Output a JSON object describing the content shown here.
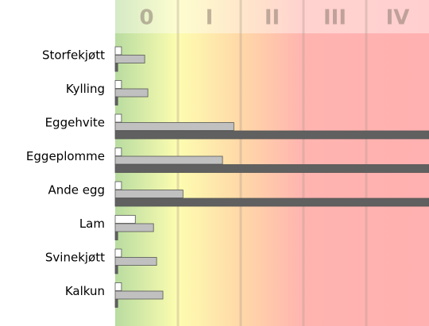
{
  "chart_data": {
    "type": "hbar",
    "categories": [
      "Storfekjøtt",
      "Kylling",
      "Eggehvite",
      "Eggeplomme",
      "Ande egg",
      "Lam",
      "Svinekjøtt",
      "Kalkun"
    ],
    "bands": [
      "0",
      "I",
      "II",
      "III",
      "IV"
    ],
    "xlim": [
      0,
      5
    ],
    "xticks": [
      1,
      2,
      3,
      4
    ],
    "series": [
      {
        "color": "#ffffff",
        "values": [
          0.1,
          0.1,
          0.1,
          0.1,
          0.1,
          0.32,
          0.1,
          0.1
        ]
      },
      {
        "color": "#c0c0c0",
        "values": [
          0.47,
          0.52,
          1.89,
          1.71,
          1.08,
          0.61,
          0.66,
          0.76
        ]
      },
      {
        "color": "#606060",
        "values": [
          0.04,
          0.04,
          5,
          5,
          5,
          0.04,
          0.04,
          0.04
        ]
      }
    ]
  }
}
